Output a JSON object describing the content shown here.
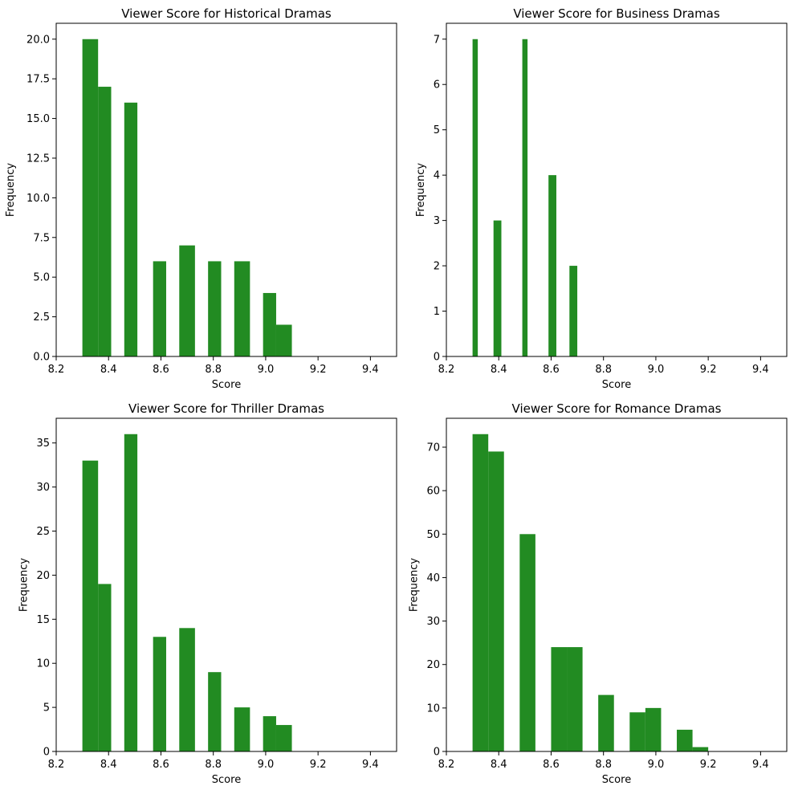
{
  "colors": {
    "bar": "#228b22",
    "axes": "#000000",
    "background": "#ffffff"
  },
  "chart_data": [
    {
      "type": "bar",
      "title": "Viewer Score for Historical Dramas",
      "xlabel": "Score",
      "ylabel": "Frequency",
      "xlim": [
        8.2,
        9.5
      ],
      "ylim": [
        0,
        21
      ],
      "xticks": [
        "8.2",
        "8.4",
        "8.6",
        "8.8",
        "9.0",
        "9.2",
        "9.4"
      ],
      "yticks": [
        "0.0",
        "2.5",
        "5.0",
        "7.5",
        "10.0",
        "12.5",
        "15.0",
        "17.5",
        "20.0"
      ],
      "grid": false,
      "bins": [
        {
          "x0": 8.3,
          "x1": 8.36,
          "value": 20
        },
        {
          "x0": 8.36,
          "x1": 8.41,
          "value": 17
        },
        {
          "x0": 8.46,
          "x1": 8.51,
          "value": 16
        },
        {
          "x0": 8.57,
          "x1": 8.62,
          "value": 6
        },
        {
          "x0": 8.67,
          "x1": 8.73,
          "value": 7
        },
        {
          "x0": 8.78,
          "x1": 8.83,
          "value": 6
        },
        {
          "x0": 8.88,
          "x1": 8.94,
          "value": 6
        },
        {
          "x0": 8.99,
          "x1": 9.04,
          "value": 4
        },
        {
          "x0": 9.04,
          "x1": 9.1,
          "value": 2
        }
      ]
    },
    {
      "type": "bar",
      "title": "Viewer Score for Business Dramas",
      "xlabel": "Score",
      "ylabel": "Frequency",
      "xlim": [
        8.2,
        9.5
      ],
      "ylim": [
        0,
        7.35
      ],
      "xticks": [
        "8.2",
        "8.4",
        "8.6",
        "8.8",
        "9.0",
        "9.2",
        "9.4"
      ],
      "yticks": [
        "0",
        "1",
        "2",
        "3",
        "4",
        "5",
        "6",
        "7"
      ],
      "grid": false,
      "bins": [
        {
          "x0": 8.3,
          "x1": 8.32,
          "value": 7
        },
        {
          "x0": 8.38,
          "x1": 8.41,
          "value": 3
        },
        {
          "x0": 8.49,
          "x1": 8.51,
          "value": 7
        },
        {
          "x0": 8.59,
          "x1": 8.62,
          "value": 4
        },
        {
          "x0": 8.67,
          "x1": 8.7,
          "value": 2
        }
      ]
    },
    {
      "type": "bar",
      "title": "Viewer Score for Thriller Dramas",
      "xlabel": "Score",
      "ylabel": "Frequency",
      "xlim": [
        8.2,
        9.5
      ],
      "ylim": [
        0,
        37.8
      ],
      "xticks": [
        "8.2",
        "8.4",
        "8.6",
        "8.8",
        "9.0",
        "9.2",
        "9.4"
      ],
      "yticks": [
        "0",
        "5",
        "10",
        "15",
        "20",
        "25",
        "30",
        "35"
      ],
      "grid": false,
      "bins": [
        {
          "x0": 8.3,
          "x1": 8.36,
          "value": 33
        },
        {
          "x0": 8.36,
          "x1": 8.41,
          "value": 19
        },
        {
          "x0": 8.46,
          "x1": 8.51,
          "value": 36
        },
        {
          "x0": 8.57,
          "x1": 8.62,
          "value": 13
        },
        {
          "x0": 8.67,
          "x1": 8.73,
          "value": 14
        },
        {
          "x0": 8.78,
          "x1": 8.83,
          "value": 9
        },
        {
          "x0": 8.88,
          "x1": 8.94,
          "value": 5
        },
        {
          "x0": 8.99,
          "x1": 9.04,
          "value": 4
        },
        {
          "x0": 9.04,
          "x1": 9.1,
          "value": 3
        }
      ]
    },
    {
      "type": "bar",
      "title": "Viewer Score for Romance Dramas",
      "xlabel": "Score",
      "ylabel": "Frequency",
      "xlim": [
        8.2,
        9.5
      ],
      "ylim": [
        0,
        76.65
      ],
      "xticks": [
        "8.2",
        "8.4",
        "8.6",
        "8.8",
        "9.0",
        "9.2",
        "9.4"
      ],
      "yticks": [
        "0",
        "10",
        "20",
        "30",
        "40",
        "50",
        "60",
        "70"
      ],
      "grid": false,
      "bins": [
        {
          "x0": 8.3,
          "x1": 8.36,
          "value": 73
        },
        {
          "x0": 8.36,
          "x1": 8.42,
          "value": 69
        },
        {
          "x0": 8.48,
          "x1": 8.54,
          "value": 50
        },
        {
          "x0": 8.6,
          "x1": 8.66,
          "value": 24
        },
        {
          "x0": 8.66,
          "x1": 8.72,
          "value": 24
        },
        {
          "x0": 8.78,
          "x1": 8.84,
          "value": 13
        },
        {
          "x0": 8.9,
          "x1": 8.96,
          "value": 9
        },
        {
          "x0": 8.96,
          "x1": 9.02,
          "value": 10
        },
        {
          "x0": 9.08,
          "x1": 9.14,
          "value": 5
        },
        {
          "x0": 9.14,
          "x1": 9.2,
          "value": 1
        }
      ]
    }
  ]
}
